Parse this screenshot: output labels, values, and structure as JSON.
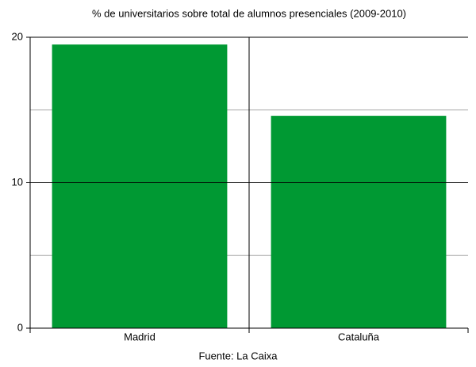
{
  "chart_data": {
    "type": "bar",
    "title": "% de universitarios sobre total de alumnos presenciales (2009-2010)",
    "source": "Fuente: La Caixa",
    "categories": [
      "Madrid",
      "Cataluña"
    ],
    "values": [
      19.5,
      14.6
    ],
    "color": "#009933",
    "ylim": [
      0,
      20
    ],
    "yticks": [
      0,
      10,
      20
    ],
    "minor_yticks": [
      5,
      15
    ],
    "grid": true
  }
}
